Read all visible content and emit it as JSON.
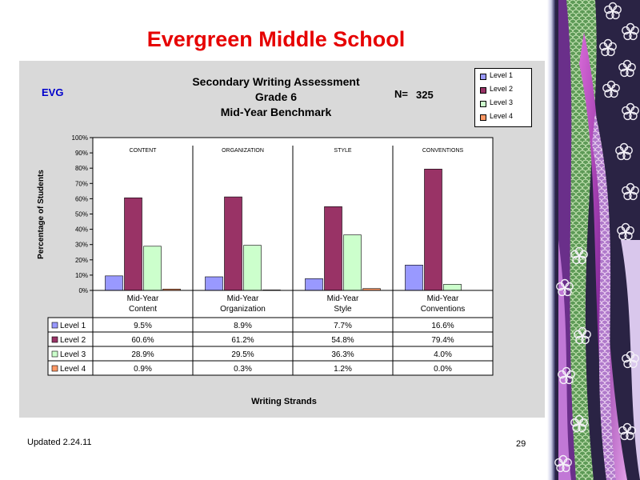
{
  "slide": {
    "title": "Evergreen Middle School",
    "school_code": "EVG",
    "n_label": "N=",
    "n_value": "325",
    "footer_updated": "Updated  2.24.11",
    "page_number": "29"
  },
  "colors": {
    "level1": "#9999ff",
    "level2": "#993366",
    "level3": "#ccffcc",
    "level4": "#ff9966",
    "title": "#e60000",
    "panel": "#d9d9d9"
  },
  "chart_data": {
    "type": "bar",
    "title": "Secondary Writing Assessment",
    "title_lines": [
      "Secondary Writing Assessment",
      "Grade 6",
      "Mid-Year Benchmark"
    ],
    "xlabel": "Writing Strands",
    "ylabel": "Percentage of Students",
    "ylim": [
      0,
      100
    ],
    "yticks": [
      "0%",
      "10%",
      "20%",
      "30%",
      "40%",
      "50%",
      "60%",
      "70%",
      "80%",
      "90%",
      "100%"
    ],
    "grid": false,
    "legend_position": "top-right",
    "group_headers": [
      "CONTENT",
      "ORGANIZATION",
      "STYLE",
      "CONVENTIONS"
    ],
    "categories": [
      [
        "Mid-Year",
        "Content"
      ],
      [
        "Mid-Year",
        "Organization"
      ],
      [
        "Mid-Year",
        "Style"
      ],
      [
        "Mid-Year",
        "Conventions"
      ]
    ],
    "series": [
      {
        "name": "Level 1",
        "values": [
          9.5,
          8.9,
          7.7,
          16.6
        ],
        "labels": [
          "9.5%",
          "8.9%",
          "7.7%",
          "16.6%"
        ]
      },
      {
        "name": "Level 2",
        "values": [
          60.6,
          61.2,
          54.8,
          79.4
        ],
        "labels": [
          "60.6%",
          "61.2%",
          "54.8%",
          "79.4%"
        ]
      },
      {
        "name": "Level 3",
        "values": [
          28.9,
          29.5,
          36.3,
          4.0
        ],
        "labels": [
          "28.9%",
          "29.5%",
          "36.3%",
          "4.0%"
        ]
      },
      {
        "name": "Level 4",
        "values": [
          0.9,
          0.3,
          1.2,
          0.0
        ],
        "labels": [
          "0.9%",
          "0.3%",
          "1.2%",
          "0.0%"
        ]
      }
    ]
  }
}
